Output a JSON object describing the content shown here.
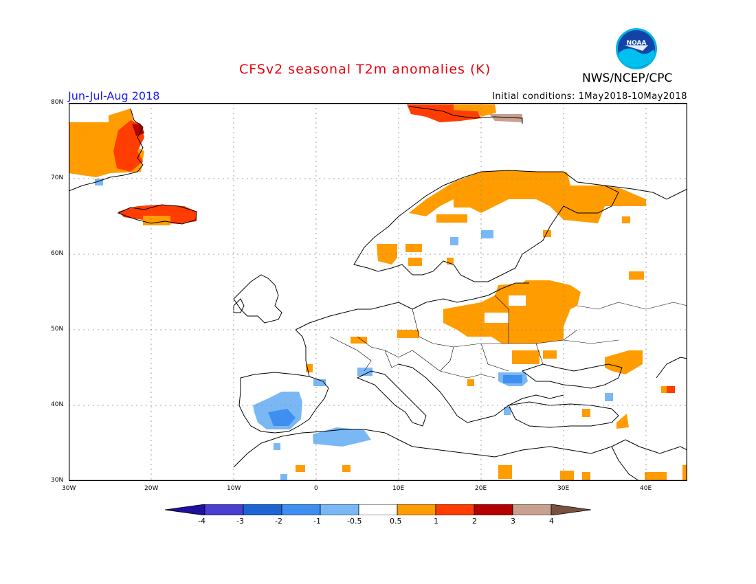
{
  "header": {
    "title": "CFSv2 seasonal T2m anomalies (K)",
    "agency": "NWS/NCEP/CPC",
    "logo_text": "NOAA",
    "period": "Jun-Jul-Aug 2018",
    "initial_conditions": "Initial conditions: 1May2018-10May2018"
  },
  "map": {
    "lon_range": [
      -30,
      45
    ],
    "lat_range": [
      30,
      80
    ],
    "grid": true,
    "lat_labels": [
      "80N",
      "70N",
      "60N",
      "50N",
      "40N",
      "30N"
    ],
    "lon_labels": [
      "30W",
      "20W",
      "10W",
      "0",
      "10E",
      "20E",
      "30E",
      "40E"
    ],
    "anomaly_regions": [
      {
        "name": "Greenland east coast",
        "level": "0.5 to 1",
        "color": "#ff9c00"
      },
      {
        "name": "Greenland east coast fringe",
        "level": "1 to 2",
        "color": "#ff3d00"
      },
      {
        "name": "Iceland",
        "level": "1 to 2",
        "color": "#ff3d00"
      },
      {
        "name": "Svalbard",
        "level": "1 to 3",
        "color": "#ff3d00"
      },
      {
        "name": "Northern Scandinavia / Kola",
        "level": "0.5 to 1",
        "color": "#ff9c00"
      },
      {
        "name": "Belarus / Western Russia",
        "level": "0.5 to 1",
        "color": "#ff9c00"
      },
      {
        "name": "Poland",
        "level": "0.5 to 1",
        "color": "#ff9c00"
      },
      {
        "name": "Iberia",
        "level": "-1 to -2",
        "color": "#3f8ff0"
      },
      {
        "name": "Northern Africa coast",
        "level": "-0.5 to -1",
        "color": "#7ab8f5"
      },
      {
        "name": "Romania / Bulgaria",
        "level": "-0.5 to -1",
        "color": "#7ab8f5"
      }
    ]
  },
  "colorbar": {
    "labels": [
      "-4",
      "-3",
      "-2",
      "-1",
      "-0.5",
      "0.5",
      "1",
      "2",
      "3",
      "4"
    ],
    "colors": [
      "#2010a0",
      "#4a3fd0",
      "#1e64d2",
      "#3f8ff0",
      "#7ab8f5",
      "#ffffff",
      "#ff9c00",
      "#ff3d00",
      "#b40000",
      "#c8a090",
      "#7a5040"
    ]
  }
}
